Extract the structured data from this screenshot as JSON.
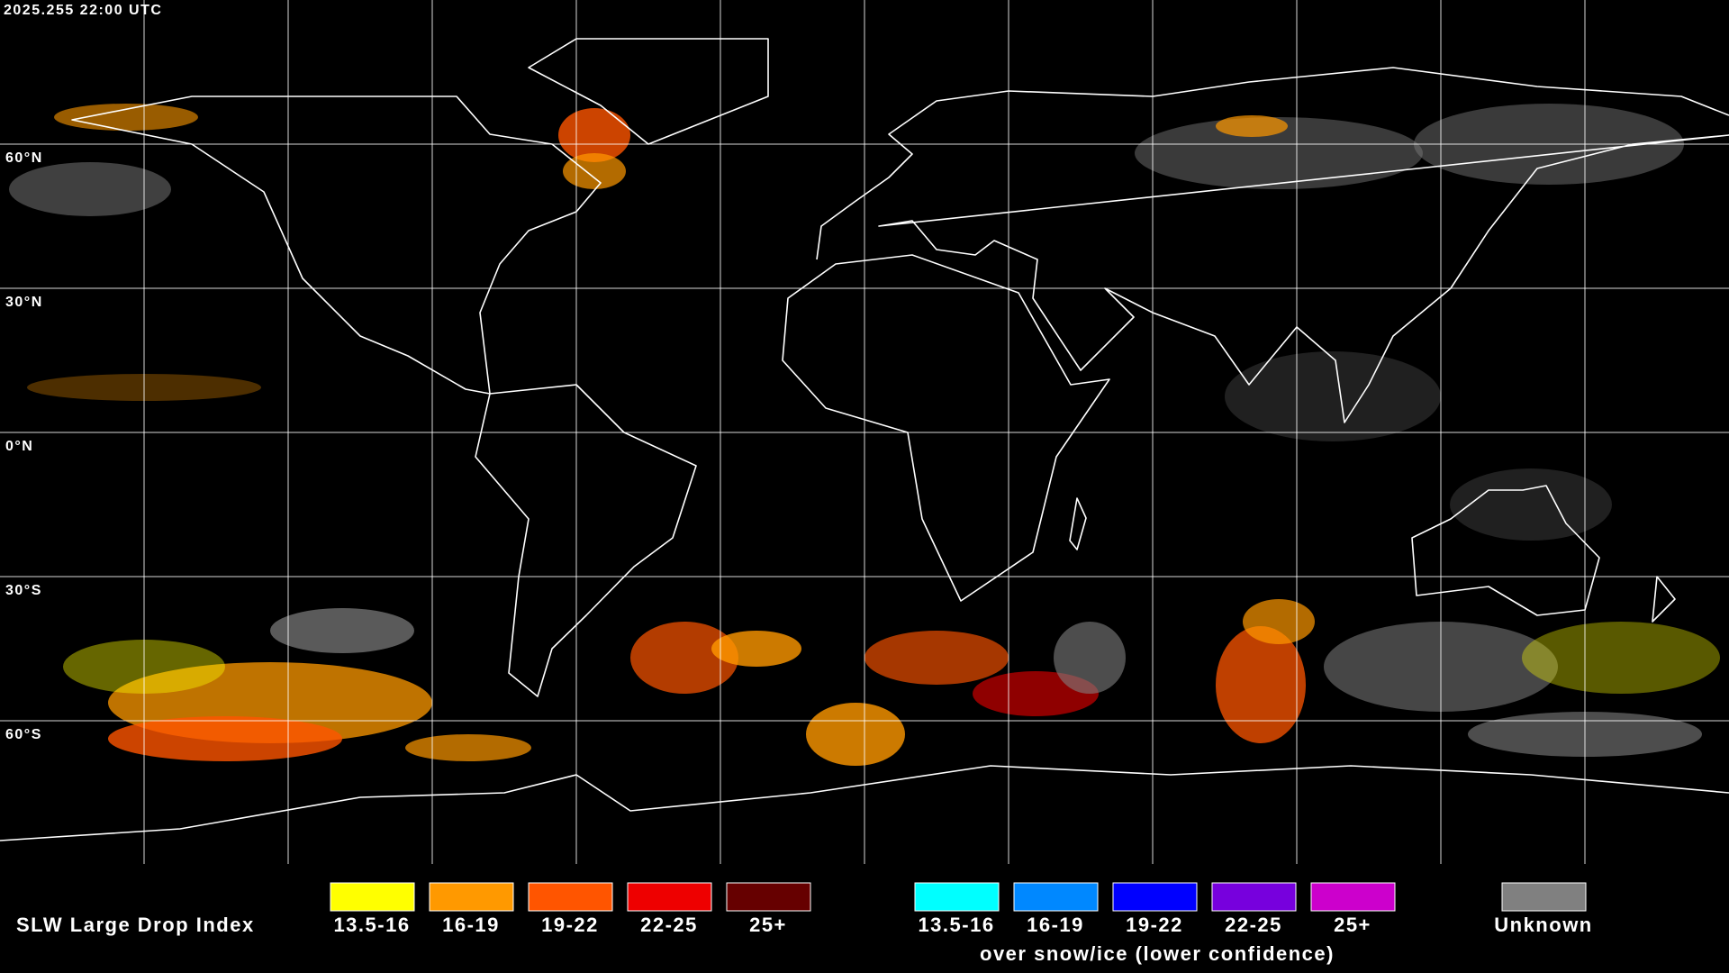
{
  "header": {
    "timestamp": "2025.255 22:00 UTC"
  },
  "map": {
    "lat_labels": [
      "60°N",
      "30°N",
      "0°N",
      "30°S",
      "60°S"
    ]
  },
  "legend": {
    "title": "SLW Large Drop Index",
    "items": [
      {
        "label": "13.5-16",
        "color": "#ffff00"
      },
      {
        "label": "16-19",
        "color": "#ff9900"
      },
      {
        "label": "19-22",
        "color": "#ff5500"
      },
      {
        "label": "22-25",
        "color": "#ee0000"
      },
      {
        "label": "25+",
        "color": "#660000"
      }
    ],
    "snow_items": [
      {
        "label": "13.5-16",
        "color": "#00ffff"
      },
      {
        "label": "16-19",
        "color": "#0088ff"
      },
      {
        "label": "19-22",
        "color": "#0000ff"
      },
      {
        "label": "22-25",
        "color": "#7700dd"
      },
      {
        "label": "25+",
        "color": "#cc00cc"
      }
    ],
    "snow_caption": "over snow/ice (lower confidence)",
    "unknown": {
      "label": "Unknown",
      "color": "#808080"
    }
  }
}
